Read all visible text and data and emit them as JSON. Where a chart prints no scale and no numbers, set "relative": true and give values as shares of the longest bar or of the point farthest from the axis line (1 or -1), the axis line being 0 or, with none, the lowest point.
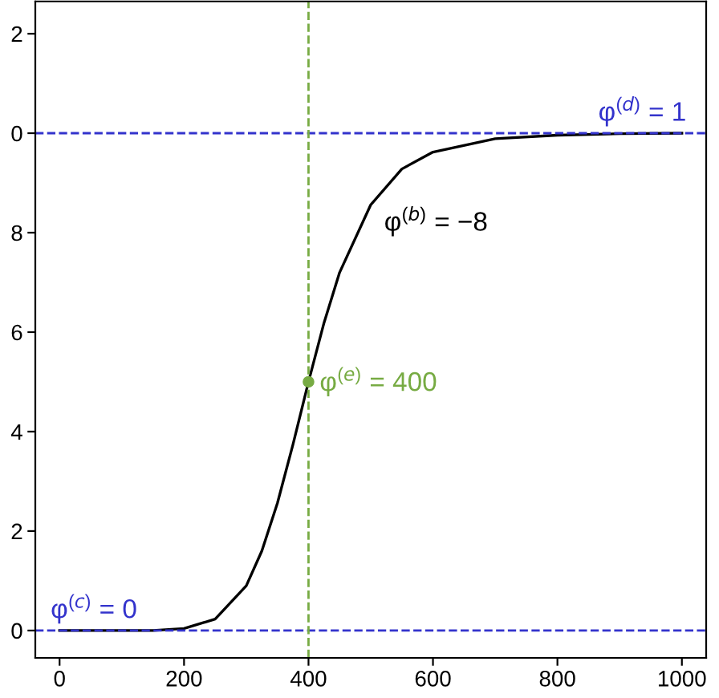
{
  "chart_data": {
    "type": "line",
    "relative": true,
    "x": [
      0,
      100,
      150,
      200,
      250,
      300,
      325,
      350,
      375,
      400,
      425,
      450,
      500,
      550,
      600,
      700,
      800,
      900,
      1000
    ],
    "series": [
      {
        "color": "#000000",
        "values": [
          0,
          0,
          0,
          0.004,
          0.023,
          0.09,
          0.16,
          0.256,
          0.374,
          0.5,
          0.619,
          0.72,
          0.856,
          0.928,
          0.962,
          0.989,
          0.996,
          0.999,
          1.0
        ]
      },
      {
        "type": "scatter",
        "marker": "circle",
        "color": "#77ab43",
        "x": [
          400
        ],
        "values": [
          0.5
        ]
      }
    ],
    "xlim": [
      -39,
      1039
    ],
    "xticks": [
      0,
      200,
      400,
      600,
      800,
      1000
    ],
    "ref_lines": [
      {
        "axis": "y",
        "value": 0,
        "color": "#3333cc",
        "line_style": "dashed"
      },
      {
        "axis": "y",
        "value": 1,
        "color": "#3333cc",
        "line_style": "dashed"
      },
      {
        "axis": "x",
        "value": 400,
        "color": "#77ab43",
        "line_style": "dashed"
      }
    ],
    "annotations": [
      "φ$^{(b)}$ = −8",
      "0",
      "2",
      "4",
      "6",
      "8",
      "0",
      "2",
      {
        "text": "φ$^{(c)}$ = 0",
        "x": 0,
        "y": 0
      },
      {
        "text": "φ$^{(d)}$ = 1",
        "x": 880,
        "y": 1
      },
      {
        "text": "φ$^{(e)}$ = 400",
        "x": 400,
        "y": 0.5
      }
    ],
    "grid": false,
    "legend": false,
    "marker": "none",
    "line_style": "solid"
  }
}
